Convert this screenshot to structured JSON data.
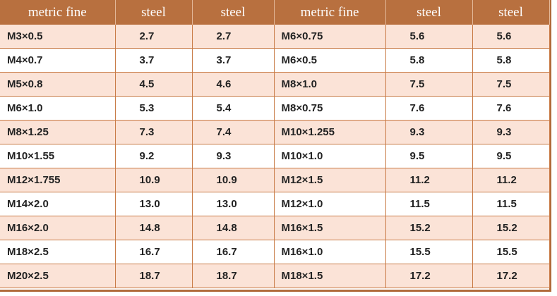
{
  "table": {
    "headers": [
      "metric fine",
      "steel",
      "steel",
      "metric fine",
      "steel",
      "steel"
    ],
    "rows": [
      [
        "M3×0.5",
        "2.7",
        "2.7",
        "M6×0.75",
        "5.6",
        "5.6"
      ],
      [
        "M4×0.7",
        "3.7",
        "3.7",
        "M6×0.5",
        "5.8",
        "5.8"
      ],
      [
        "M5×0.8",
        "4.5",
        "4.6",
        "M8×1.0",
        "7.5",
        "7.5"
      ],
      [
        "M6×1.0",
        "5.3",
        "5.4",
        "M8×0.75",
        "7.6",
        "7.6"
      ],
      [
        "M8×1.25",
        "7.3",
        "7.4",
        "M10×1.255",
        "9.3",
        "9.3"
      ],
      [
        "M10×1.55",
        "9.2",
        "9.3",
        "M10×1.0",
        "9.5",
        "9.5"
      ],
      [
        "M12×1.755",
        "10.9",
        "10.9",
        "M12×1.5",
        "11.2",
        "11.2"
      ],
      [
        "M14×2.0",
        "13.0",
        "13.0",
        "M12×1.0",
        "11.5",
        "11.5"
      ],
      [
        "M16×2.0",
        "14.8",
        "14.8",
        "M16×1.5",
        "15.2",
        "15.2"
      ],
      [
        "M18×2.5",
        "16.7",
        "16.7",
        "M16×1.0",
        "15.5",
        "15.5"
      ],
      [
        "M20×2.5",
        "18.7",
        "18.7",
        "M18×1.5",
        "17.2",
        "17.2"
      ]
    ]
  },
  "colors": {
    "header_bg": "#b8703f",
    "stripe_bg": "#fbe3d7",
    "border": "#c87a45"
  }
}
